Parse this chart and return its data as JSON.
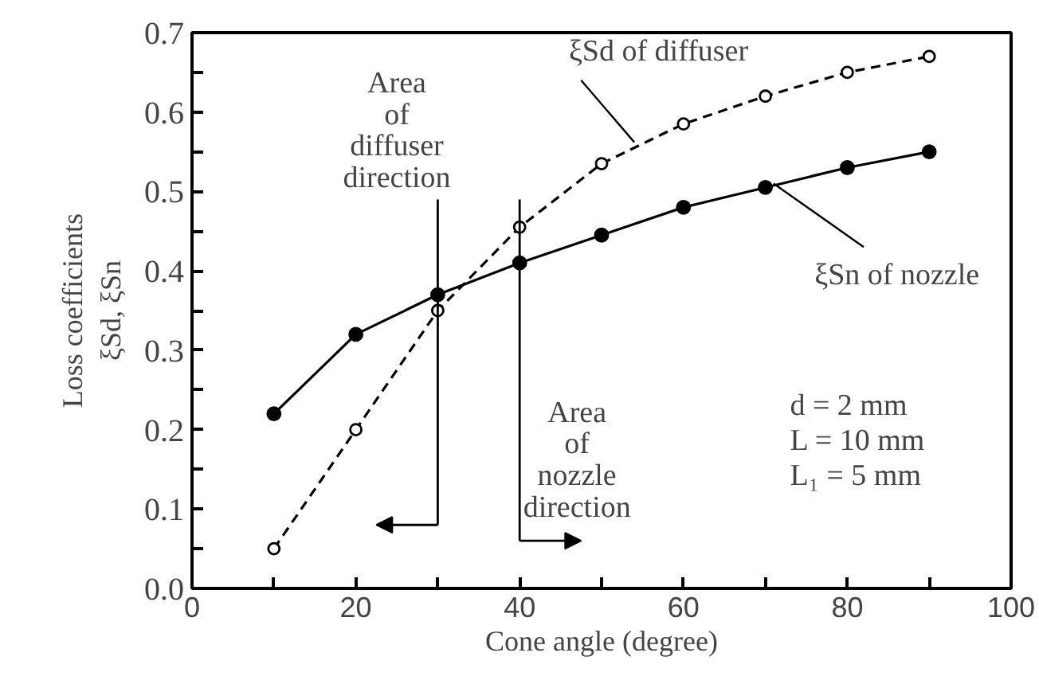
{
  "chart_data": {
    "type": "line",
    "xlabel": "Cone angle (degree)",
    "ylabel": "Loss coefficients\nξSd, ξSn",
    "x": [
      10,
      20,
      30,
      40,
      50,
      60,
      70,
      80,
      90
    ],
    "series": [
      {
        "name": "ξSd of diffuser",
        "color": "#000000",
        "line_style": "dashed",
        "marker": "circle",
        "values": [
          0.05,
          0.2,
          0.35,
          0.455,
          0.535,
          0.585,
          0.62,
          0.65,
          0.67
        ]
      },
      {
        "name": "ξSn of nozzle",
        "color": "#000000",
        "line_style": "solid",
        "marker": "circle",
        "values": [
          0.22,
          0.32,
          0.37,
          0.41,
          0.445,
          0.48,
          0.505,
          0.53,
          0.55
        ]
      }
    ],
    "xlim": [
      0,
      100
    ],
    "xticks": [
      0,
      {
        "value": 10,
        "label": null
      },
      20,
      {
        "value": 30,
        "label": null
      },
      40,
      {
        "value": 50,
        "label": null
      },
      60,
      {
        "value": 70,
        "label": null
      },
      80,
      {
        "value": 90,
        "label": null
      },
      100
    ],
    "ylim": [
      0,
      0.7
    ],
    "yticks": [
      {
        "value": 0,
        "label": "0.0"
      },
      {
        "value": 0.05,
        "label": null
      },
      0.1,
      {
        "value": 0.15,
        "label": null
      },
      0.2,
      {
        "value": 0.25,
        "label": null
      },
      0.3,
      {
        "value": 0.35,
        "label": null
      },
      0.4,
      {
        "value": 0.45,
        "label": null
      },
      0.5,
      {
        "value": 0.55,
        "label": null
      },
      0.6,
      {
        "value": 0.65,
        "label": null
      },
      0.7
    ],
    "grid": false,
    "annotations": [
      "Area\nof\ndiffuser\ndirection",
      "Area\nof\nnozzle\ndirection",
      "d = 2 mm\nL = 10 mm\nL₁ = 5 mm"
    ]
  }
}
